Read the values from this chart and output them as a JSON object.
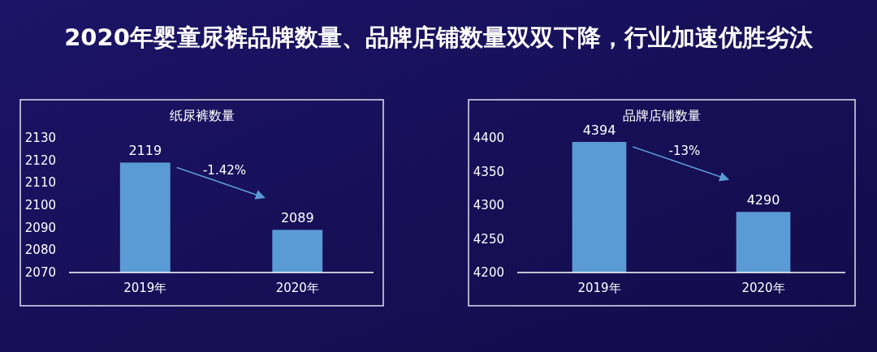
{
  "chart_data": [
    {
      "type": "bar",
      "subtitle": "2020年婴童尿裤品牌数量、品牌店铺数量双双下降，行业加速优胜劣汰",
      "title": "纸尿裤数量",
      "categories": [
        "2019年",
        "2020年"
      ],
      "values": [
        2119,
        2089
      ],
      "color": "#5b9bd5",
      "ylim": [
        2070,
        2130
      ],
      "yticks": [
        2070,
        2080,
        2090,
        2100,
        2110,
        2120,
        2130
      ],
      "data_labels": true,
      "annotations": [
        "-1.42%"
      ]
    },
    {
      "type": "bar",
      "title": "品牌店铺数量",
      "categories": [
        "2019年",
        "2020年"
      ],
      "values": [
        4394,
        4290
      ],
      "color": "#5b9bd5",
      "ylim": [
        4200,
        4400
      ],
      "yticks": [
        4200,
        4250,
        4300,
        4350,
        4400
      ],
      "data_labels": true,
      "annotations": [
        "-13%"
      ]
    }
  ]
}
